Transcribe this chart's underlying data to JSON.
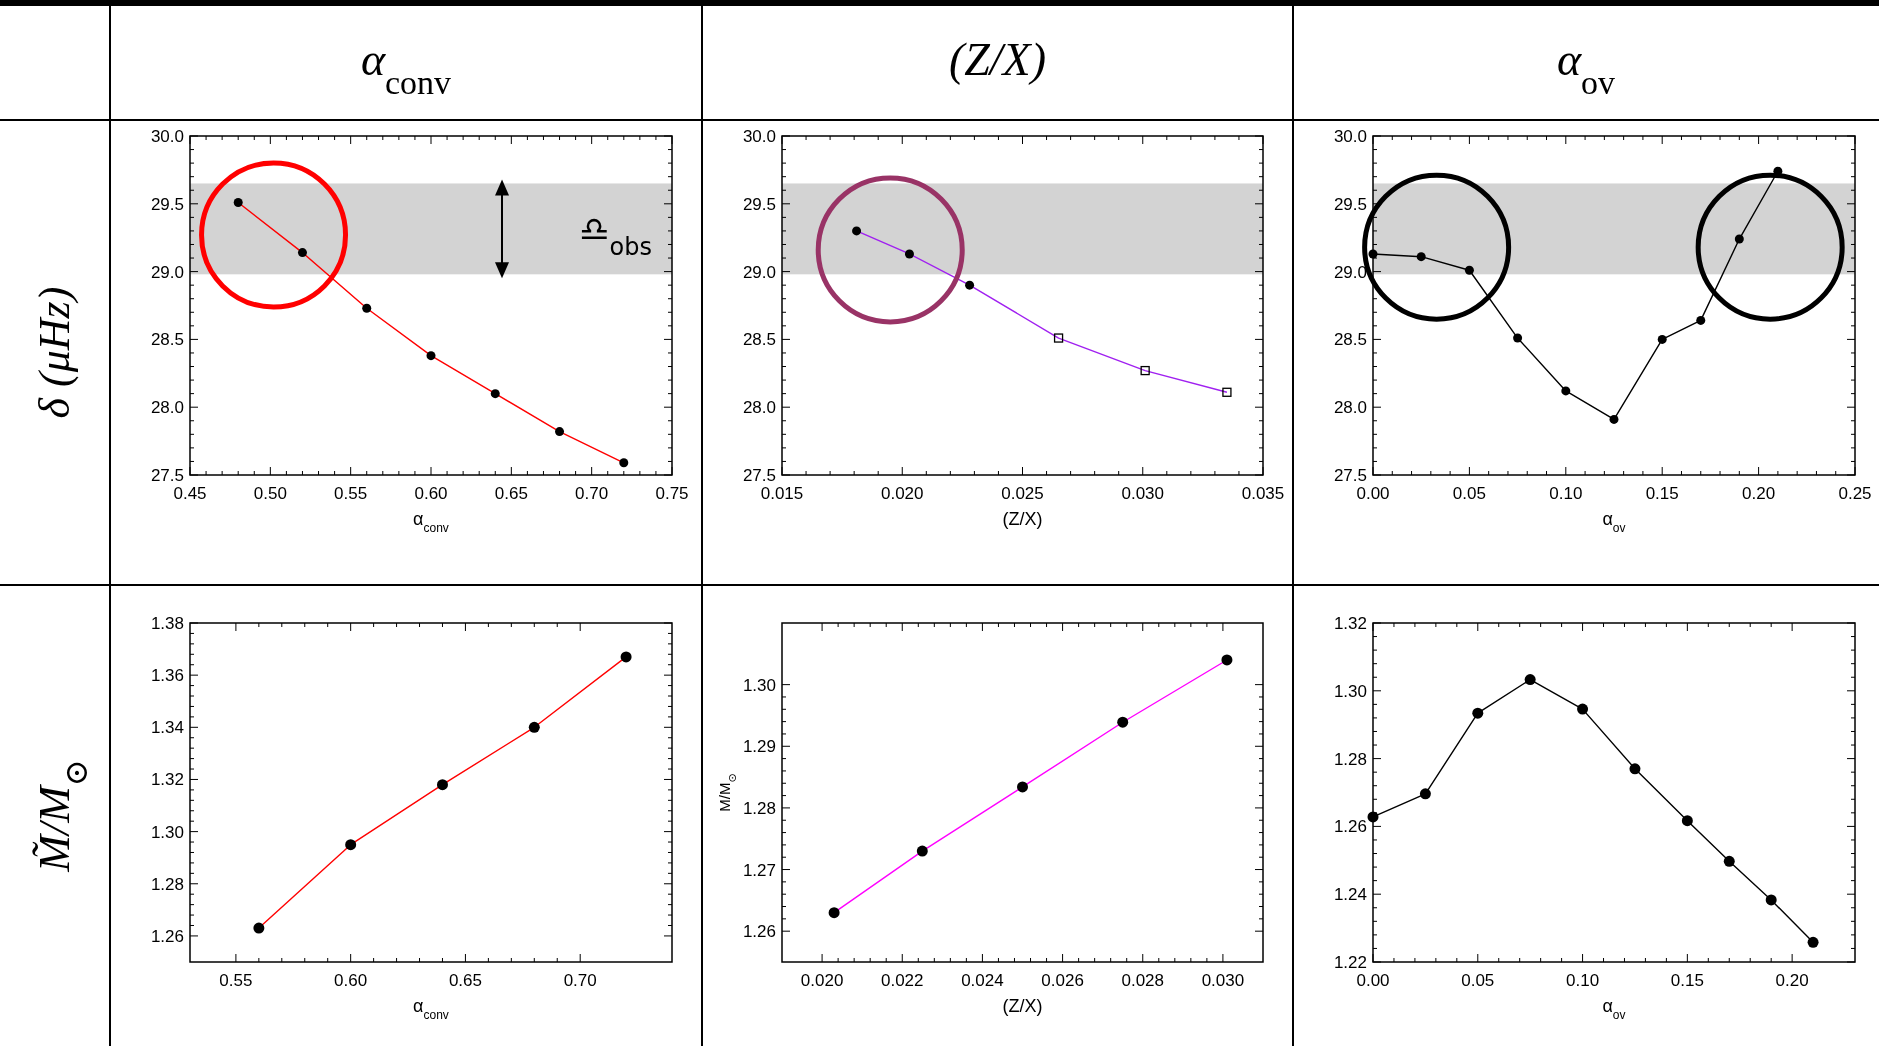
{
  "chart_data": [
    {
      "type": "line",
      "title": "α$_{conv}$",
      "ylabel": "δ (μHz)",
      "xlabel": "α$_{conv}$",
      "x": [
        0.48,
        0.52,
        0.56,
        0.6,
        0.64,
        0.68,
        0.72
      ],
      "xlim": [
        0.45,
        0.75
      ],
      "ylim": [
        27.5,
        30.0
      ],
      "xticks": [
        0.45,
        {
          "value": 0.5,
          "label": "0.50"
        },
        0.55,
        {
          "value": 0.6,
          "label": "0.60"
        },
        0.65,
        {
          "value": 0.7,
          "label": "0.70"
        },
        0.75
      ],
      "yticks": [
        27.5,
        {
          "value": 28,
          "label": "28.0"
        },
        28.5,
        {
          "value": 29,
          "label": "29.0"
        },
        29.5,
        {
          "value": 30,
          "label": "30.0"
        }
      ],
      "marker": "circle",
      "grid": false,
      "bands": [
        {
          "axis": "y",
          "from": 28.98,
          "to": 29.65,
          "label": "♎︎$_{obs}$",
          "color": "#d3d3d3"
        }
      ],
      "series": [
        {
          "color": "#ff0000",
          "values": [
            29.51,
            29.14,
            28.73,
            28.38,
            28.1,
            27.82,
            27.59
          ]
        }
      ]
    },
    {
      "type": "line",
      "title": "(Z/X)",
      "xlabel": "(Z/X)",
      "xlim": [
        0.015,
        0.035
      ],
      "ylim": [
        27.5,
        30.0
      ],
      "xticks": [
        0.015,
        {
          "value": 0.02,
          "label": "0.020"
        },
        0.025,
        {
          "value": 0.03,
          "label": "0.030"
        },
        0.035
      ],
      "yticks": [
        27.5,
        {
          "value": 28,
          "label": "28.0"
        },
        28.5,
        {
          "value": 29,
          "label": "29.0"
        },
        29.5,
        {
          "value": 30,
          "label": "30.0"
        }
      ],
      "marker": "none",
      "grid": false,
      "bands": [
        {
          "axis": "y",
          "from": 28.98,
          "to": 29.65,
          "color": "#d3d3d3"
        }
      ],
      "series": [
        {
          "color": "#a020f0",
          "x": [
            0.0181,
            0.0203,
            0.0228,
            0.0265,
            0.0301,
            0.0335
          ],
          "values": [
            29.3,
            29.13,
            28.9,
            28.51,
            28.27,
            28.11
          ]
        },
        {
          "type": "scatter",
          "marker": "circle",
          "color": "#000000",
          "x": [
            0.0181,
            0.0203,
            0.0228
          ],
          "values": [
            29.3,
            29.13,
            28.9
          ]
        },
        {
          "type": "scatter",
          "marker": "square",
          "color": "#000000",
          "x": [
            0.0265,
            0.0301,
            0.0335
          ],
          "values": [
            28.51,
            28.27,
            28.11
          ]
        }
      ]
    },
    {
      "type": "line",
      "title": "α$_{ov}$",
      "xlabel": "α$_{ov}$",
      "x": [
        0,
        0.025,
        0.05,
        0.075,
        0.1,
        0.125,
        0.15,
        0.17,
        0.19,
        0.21
      ],
      "xlim": [
        0,
        0.25
      ],
      "ylim": [
        27.5,
        30.0
      ],
      "xticks": [
        {
          "value": 0,
          "label": "0.00"
        },
        0.05,
        {
          "value": 0.1,
          "label": "0.10"
        },
        0.15,
        {
          "value": 0.2,
          "label": "0.20"
        },
        0.25
      ],
      "yticks": [
        27.5,
        {
          "value": 28,
          "label": "28.0"
        },
        28.5,
        {
          "value": 29,
          "label": "29.0"
        },
        29.5,
        {
          "value": 30,
          "label": "30.0"
        }
      ],
      "marker": "circle",
      "grid": false,
      "bands": [
        {
          "axis": "y",
          "from": 28.98,
          "to": 29.65,
          "color": "#d3d3d3"
        }
      ],
      "series": [
        {
          "color": "#000000",
          "values": [
            29.13,
            29.11,
            29.01,
            28.51,
            28.12,
            27.91,
            28.5,
            28.64,
            29.24,
            29.74
          ]
        }
      ]
    },
    {
      "type": "line",
      "ylabel": "M̃/M$_{⊙}$",
      "xlabel": "α$_{conv}$",
      "x": [
        0.56,
        0.6,
        0.64,
        0.68,
        0.72
      ],
      "xlim": [
        0.53,
        0.74
      ],
      "ylim": [
        1.25,
        1.38
      ],
      "xticks": [
        0.55,
        {
          "value": 0.6,
          "label": "0.60"
        },
        0.65,
        {
          "value": 0.7,
          "label": "0.70"
        }
      ],
      "yticks": [
        1.26,
        1.28,
        {
          "value": 1.3,
          "label": "1.30"
        },
        1.32,
        1.34,
        1.36,
        1.38
      ],
      "marker": "circle",
      "grid": false,
      "series": [
        {
          "color": "#ff0000",
          "values": [
            1.263,
            1.295,
            1.318,
            1.34,
            1.367
          ]
        }
      ]
    },
    {
      "type": "line",
      "ylabel": "M/M$_{⊙}$",
      "xlabel": "(Z/X)",
      "x": [
        0.0203,
        0.0225,
        0.025,
        0.0275,
        0.0301
      ],
      "xlim": [
        0.019,
        0.031
      ],
      "ylim": [
        1.255,
        1.31
      ],
      "xticks": [
        {
          "value": 0.02,
          "label": "0.020"
        },
        0.022,
        0.024,
        0.026,
        0.028,
        {
          "value": 0.03,
          "label": "0.030"
        }
      ],
      "yticks": [
        1.26,
        1.27,
        1.28,
        1.29,
        {
          "value": 1.3,
          "label": "1.30"
        }
      ],
      "marker": "circle",
      "grid": false,
      "series": [
        {
          "color": "#ff00ff",
          "values": [
            1.263,
            1.273,
            1.2834,
            1.2939,
            1.304
          ]
        }
      ]
    },
    {
      "type": "line",
      "xlabel": "α$_{ov}$",
      "x": [
        0,
        0.025,
        0.05,
        0.075,
        0.1,
        0.125,
        0.15,
        0.17,
        0.19,
        0.21
      ],
      "xlim": [
        0,
        0.23
      ],
      "ylim": [
        1.22,
        1.32
      ],
      "xticks": [
        {
          "value": 0,
          "label": "0.00"
        },
        0.05,
        {
          "value": 0.1,
          "label": "0.10"
        },
        0.15,
        {
          "value": 0.2,
          "label": "0.20"
        }
      ],
      "yticks": [
        1.22,
        1.24,
        1.26,
        1.28,
        {
          "value": 1.3,
          "label": "1.30"
        },
        1.32
      ],
      "marker": "circle",
      "grid": false,
      "series": [
        {
          "color": "#000000",
          "values": [
            1.2628,
            1.2696,
            1.2934,
            1.3033,
            1.2946,
            1.277,
            1.2617,
            1.2497,
            1.2383,
            1.2258
          ]
        }
      ]
    }
  ]
}
